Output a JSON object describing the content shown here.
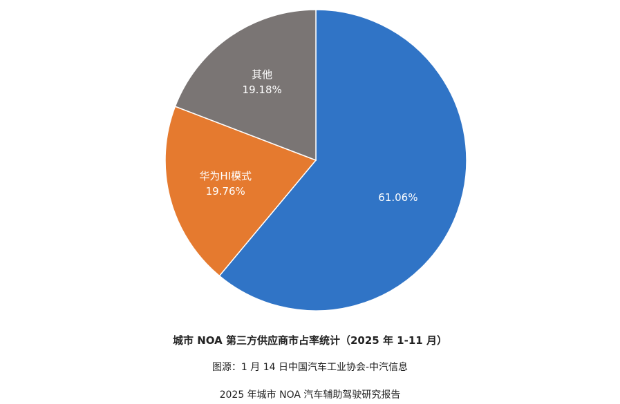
{
  "chart_data": {
    "type": "pie",
    "title": "城市 NOA 第三方供应商市占率统计（2025 年 1-11 月）",
    "slices": [
      {
        "label": "",
        "value": 61.06,
        "value_label": "61.06%",
        "color": "#3074C6",
        "label_color": "#ffffff"
      },
      {
        "label": "华为HI模式",
        "value": 19.76,
        "value_label": "19.76%",
        "color": "#E57A2F",
        "label_color": "#ffffff"
      },
      {
        "label": "其他",
        "value": 19.18,
        "value_label": "19.18%",
        "color": "#7A7574",
        "label_color": "#ffffff"
      }
    ],
    "legend": "none"
  },
  "captions": {
    "source": "图源：1 月 14 日中国汽车工业协会-中汽信息",
    "report": "2025 年城市 NOA 汽车辅助驾驶研究报告"
  }
}
